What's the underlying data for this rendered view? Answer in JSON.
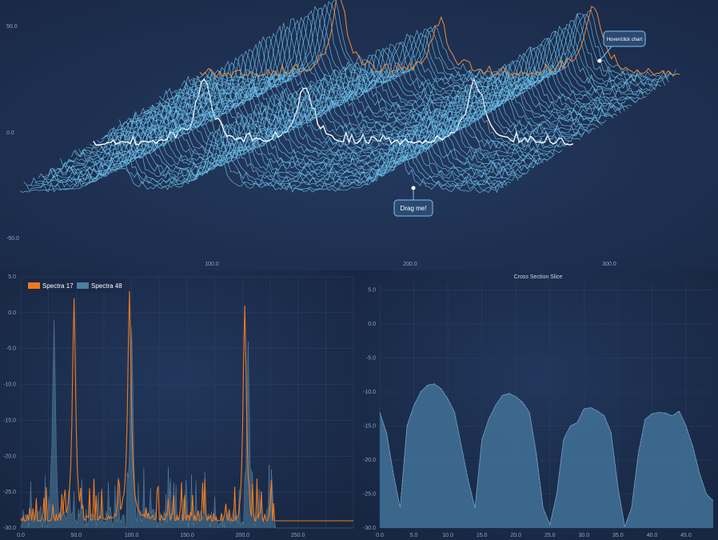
{
  "colors": {
    "background": "#1c2b4a",
    "panel_top": "#1b2a4a",
    "panel_bottom": "#1a2945",
    "waterfall_line": "#6ec3ec",
    "highlight_white": "#ffffff",
    "highlight_orange": "#f08c3a",
    "spectra_orange": "#f07a1e",
    "spectra_blue": "#4d7f9e",
    "slice_fill": "#3f6e94",
    "slice_stroke": "#9fd6f2",
    "grid": "#2a3f66"
  },
  "annotations": {
    "hover": "Hover/click chart",
    "drag": "Drag me!"
  },
  "chart_data": [
    {
      "type": "line",
      "name": "waterfall-3d",
      "series_count": 50,
      "peaks_x": [
        70,
        115,
        215,
        320
      ],
      "x_ticks": [
        "100.0",
        "200.0",
        "300.0"
      ],
      "y_ticks": [
        "50.0",
        "0.0",
        "-50.0"
      ],
      "xlim": [
        0,
        350
      ],
      "ylim": [
        -55,
        55
      ]
    },
    {
      "type": "area",
      "name": "spectra-comparison",
      "series": [
        {
          "name": "Spectra 17",
          "color": "#f07a1e",
          "peaks": [
            [
              48,
              2
            ],
            [
              98,
              3
            ],
            [
              202,
              1
            ]
          ]
        },
        {
          "name": "Spectra 48",
          "color": "#4d7f9e",
          "peaks": [
            [
              30,
              -1
            ],
            [
              100,
              -2
            ],
            [
              205,
              -4
            ]
          ]
        }
      ],
      "x_ticks": [
        "0.0",
        "50.0",
        "100.0",
        "150.0",
        "200.0",
        "250.0"
      ],
      "y_ticks": [
        "5.0",
        "0.0",
        "-5.0",
        "-10.0",
        "-15.0",
        "-20.0",
        "-25.0",
        "-30.0"
      ],
      "xlim": [
        0,
        300
      ],
      "ylim": [
        -30,
        5
      ],
      "legend": "top-left",
      "grid": true
    },
    {
      "type": "area",
      "name": "cross-section",
      "title": "Cross Section Slice",
      "x": [
        0,
        1,
        2,
        3,
        4,
        5,
        6,
        7,
        8,
        9,
        10,
        11,
        12,
        13,
        14,
        15,
        16,
        17,
        18,
        19,
        20,
        21,
        22,
        23,
        24,
        25,
        26,
        27,
        28,
        29,
        30,
        31,
        32,
        33,
        34,
        35,
        36,
        37,
        38,
        39,
        40,
        41,
        42,
        43,
        44,
        45,
        46,
        47,
        48,
        49
      ],
      "values": [
        -13,
        -16,
        -22,
        -27,
        -15,
        -12,
        -10,
        -9,
        -8.8,
        -9.5,
        -11,
        -13,
        -18,
        -23,
        -27,
        -17,
        -14,
        -12,
        -10.5,
        -10.2,
        -10.7,
        -11.5,
        -13,
        -19,
        -27,
        -29.5,
        -25,
        -17,
        -15,
        -14.5,
        -12.5,
        -12.3,
        -12.8,
        -13.5,
        -16,
        -24,
        -29.8,
        -27,
        -19,
        -14,
        -13.2,
        -13,
        -13.1,
        -13.5,
        -12.8,
        -15,
        -18,
        -22,
        -25,
        -26
      ],
      "x_ticks": [
        "0.0",
        "5.0",
        "10.0",
        "15.0",
        "20.0",
        "25.0",
        "30.0",
        "35.0",
        "40.0",
        "45.0"
      ],
      "y_ticks": [
        "5.0",
        "0.0",
        "-5.0",
        "-10.0",
        "-15.0",
        "-20.0",
        "-25.0",
        "-30.0"
      ],
      "xlim": [
        0,
        49
      ],
      "ylim": [
        -30,
        6
      ],
      "grid": true
    }
  ]
}
